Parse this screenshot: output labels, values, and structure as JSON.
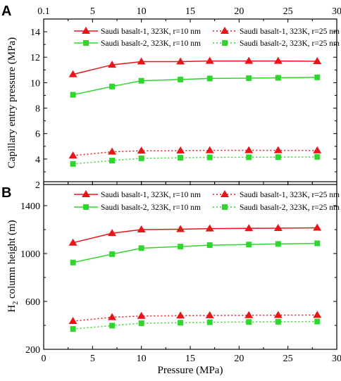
{
  "figure": {
    "x_ticks": [
      "0",
      "5",
      "10",
      "15",
      "20",
      "25",
      "30"
    ],
    "top_x_ticks": [
      "0.1",
      "5",
      "10",
      "15",
      "20",
      "25",
      "30"
    ],
    "xlabel": "Pressure (MPa)"
  },
  "chart_data": [
    {
      "type": "line",
      "panel_label": "A",
      "ylabel": "Capillary entry pressure (MPa)",
      "xlim": [
        0,
        30
      ],
      "ylim": [
        2,
        15
      ],
      "y_ticks": [
        "2",
        "4",
        "6",
        "8",
        "10",
        "12",
        "14"
      ],
      "legend_position": "top",
      "grid": false,
      "x": [
        3,
        7,
        10,
        14,
        17,
        21,
        24,
        28
      ],
      "series": [
        {
          "name": "Saudi basalt-1, 323K, r=10 nm",
          "color": "#e8151b",
          "style": "solid",
          "marker": "triangle",
          "values": [
            10.65,
            11.4,
            11.65,
            11.65,
            11.7,
            11.7,
            11.7,
            11.68
          ]
        },
        {
          "name": "Saudi basalt-1, 323K, r=25 nm",
          "color": "#e8151b",
          "style": "dotted",
          "marker": "triangle",
          "values": [
            4.27,
            4.57,
            4.65,
            4.66,
            4.68,
            4.68,
            4.68,
            4.67
          ]
        },
        {
          "name": "Saudi basalt-2, 323K, r=10 nm",
          "color": "#2fd62c",
          "style": "solid",
          "marker": "square",
          "values": [
            9.05,
            9.7,
            10.15,
            10.25,
            10.33,
            10.35,
            10.38,
            10.42
          ]
        },
        {
          "name": "Saudi basalt-2, 323K, r=25 nm",
          "color": "#2fd62c",
          "style": "dotted",
          "marker": "square",
          "values": [
            3.62,
            3.88,
            4.06,
            4.1,
            4.13,
            4.14,
            4.15,
            4.17
          ]
        }
      ]
    },
    {
      "type": "line",
      "panel_label": "B",
      "ylabel_main": "H",
      "ylabel_sub": "2",
      "ylabel_rest": " column height (m)",
      "xlim": [
        0,
        30
      ],
      "ylim": [
        200,
        1600
      ],
      "y_ticks": [
        "200",
        "600",
        "1000",
        "1400"
      ],
      "legend_position": "top",
      "grid": false,
      "x": [
        3,
        7,
        10,
        14,
        17,
        21,
        24,
        28
      ],
      "series": [
        {
          "name": "Saudi basalt-1, 323K, r=10 nm",
          "color": "#e8151b",
          "style": "solid",
          "marker": "triangle",
          "values": [
            1090,
            1170,
            1200,
            1203,
            1208,
            1210,
            1212,
            1215
          ]
        },
        {
          "name": "Saudi basalt-1, 323K, r=25 nm",
          "color": "#e8151b",
          "style": "dotted",
          "marker": "triangle",
          "values": [
            435,
            468,
            478,
            481,
            483,
            484,
            485,
            486
          ]
        },
        {
          "name": "Saudi basalt-2, 323K, r=10 nm",
          "color": "#2fd62c",
          "style": "solid",
          "marker": "square",
          "values": [
            925,
            995,
            1045,
            1058,
            1070,
            1075,
            1080,
            1085
          ]
        },
        {
          "name": "Saudi basalt-2, 323K, r=25 nm",
          "color": "#2fd62c",
          "style": "dotted",
          "marker": "square",
          "values": [
            370,
            398,
            418,
            422,
            426,
            428,
            430,
            432
          ]
        }
      ]
    }
  ]
}
